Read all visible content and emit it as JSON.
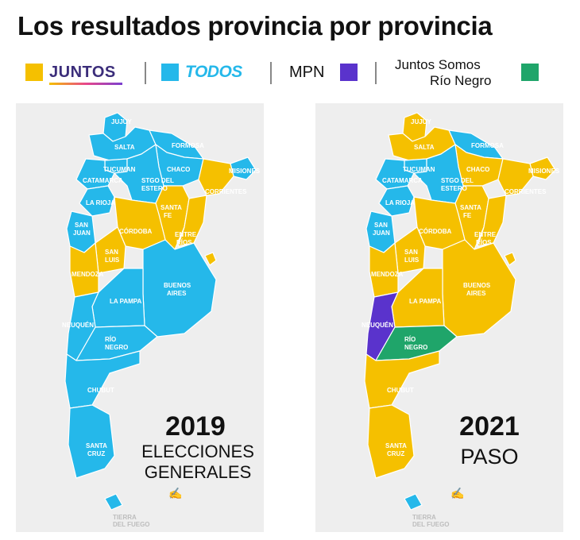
{
  "title": "Los resultados provincia por provincia",
  "legend": [
    {
      "label": "JUNTOS",
      "color": "#f5c000"
    },
    {
      "label": "TODOS",
      "color": "#25b8ea"
    },
    {
      "label": "MPN",
      "color": "#5a33cc"
    },
    {
      "label_line1": "Juntos Somos",
      "label_line2": "Río Negro",
      "color": "#1fa56a"
    }
  ],
  "maps": [
    {
      "year": "2019",
      "subtitle_line1": "ELECCIONES",
      "subtitle_line2": "GENERALES",
      "provinces": {
        "JUJUY": "TODOS",
        "SALTA": "TODOS",
        "FORMOSA": "TODOS",
        "MISIONES": "TODOS",
        "TUCUMAN": "TODOS",
        "CHACO": "TODOS",
        "CATAMARCA": "TODOS",
        "STGO DEL ESTERO": "TODOS",
        "CORRIENTES": "JUNTOS",
        "LA RIOJA": "TODOS",
        "SANTA FE": "JUNTOS",
        "SAN JUAN": "TODOS",
        "CÓRDOBA": "JUNTOS",
        "ENTRE RÍOS": "JUNTOS",
        "SAN LUIS": "JUNTOS",
        "MENDOZA": "JUNTOS",
        "BUENOS AIRES": "TODOS",
        "CABA": "JUNTOS",
        "LA PAMPA": "TODOS",
        "NEUQUÉN": "TODOS",
        "RÍO NEGRO": "TODOS",
        "CHUBUT": "TODOS",
        "SANTA CRUZ": "TODOS",
        "TIERRA DEL FUEGO": "TODOS"
      }
    },
    {
      "year": "2021",
      "subtitle_line1": "PASO",
      "subtitle_line2": "",
      "provinces": {
        "JUJUY": "JUNTOS",
        "SALTA": "JUNTOS",
        "FORMOSA": "TODOS",
        "MISIONES": "JUNTOS",
        "TUCUMAN": "TODOS",
        "CHACO": "JUNTOS",
        "CATAMARCA": "TODOS",
        "STGO DEL ESTERO": "TODOS",
        "CORRIENTES": "JUNTOS",
        "LA RIOJA": "TODOS",
        "SANTA FE": "JUNTOS",
        "SAN JUAN": "TODOS",
        "CÓRDOBA": "JUNTOS",
        "ENTRE RÍOS": "JUNTOS",
        "SAN LUIS": "JUNTOS",
        "MENDOZA": "JUNTOS",
        "BUENOS AIRES": "JUNTOS",
        "CABA": "JUNTOS",
        "LA PAMPA": "JUNTOS",
        "NEUQUÉN": "MPN",
        "RÍO NEGRO": "Juntos Somos Río Negro",
        "CHUBUT": "JUNTOS",
        "SANTA CRUZ": "JUNTOS",
        "TIERRA DEL FUEGO": "TODOS"
      }
    }
  ],
  "colors": {
    "JUNTOS": "#f5c000",
    "TODOS": "#25b8ea",
    "MPN": "#5a33cc",
    "Juntos Somos Río Negro": "#1fa56a"
  }
}
